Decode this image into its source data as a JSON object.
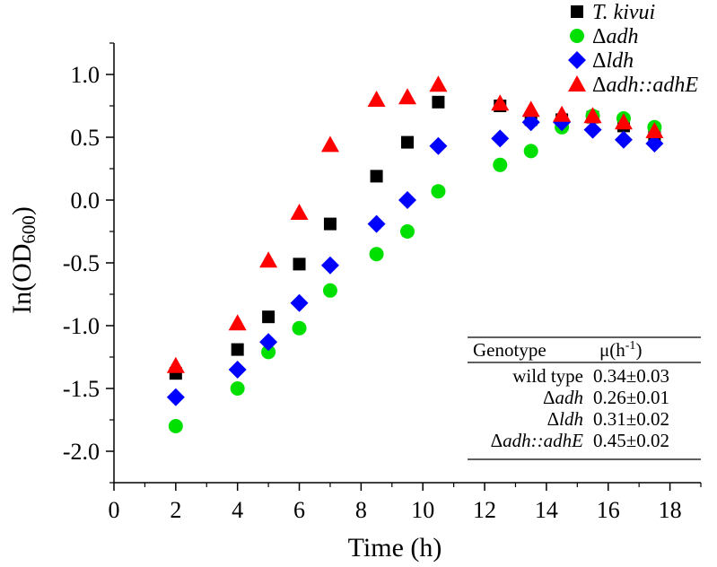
{
  "chart_data": {
    "type": "scatter",
    "xlabel": "Time (h)",
    "ylabel": {
      "main": "In(OD",
      "sub": "600",
      "end": ")"
    },
    "xlim": [
      0,
      19
    ],
    "ylim": [
      -2.25,
      1.25
    ],
    "xticks": [
      0,
      2,
      4,
      6,
      8,
      10,
      12,
      14,
      16,
      18
    ],
    "yticks": [
      1.0,
      0.5,
      0.0,
      -0.5,
      -1.0,
      -1.5,
      -2.0
    ],
    "xtick_labels": [
      "0",
      "2",
      "4",
      "6",
      "8",
      "10",
      "12",
      "14",
      "16",
      "18"
    ],
    "ytick_labels": [
      "1.0",
      "0.5",
      "0.0",
      "-0.5",
      "-1.0",
      "-1.5",
      "-2.0"
    ],
    "legend_position": "top-right",
    "series": [
      {
        "name": "T. kivui",
        "legend_label": {
          "prefix": "",
          "italic": "T. kivui"
        },
        "marker": "square",
        "color": "#000000",
        "x": [
          2,
          4,
          5,
          6,
          7,
          8.5,
          9.5,
          10.5,
          12.5,
          13.5,
          14.5,
          15.5,
          16.5,
          17.5
        ],
        "y": [
          -1.38,
          -1.19,
          -0.93,
          -0.51,
          -0.19,
          0.19,
          0.46,
          0.78,
          0.75,
          0.64,
          0.64,
          0.66,
          0.59,
          0.51
        ]
      },
      {
        "name": "Δadh",
        "legend_label": {
          "prefix": "Δ",
          "italic": "adh"
        },
        "marker": "circle",
        "color": "#00e000",
        "x": [
          2,
          4,
          5,
          6,
          7,
          8.5,
          9.5,
          10.5,
          12.5,
          13.5,
          14.5,
          15.5,
          16.5,
          17.5
        ],
        "y": [
          -1.8,
          -1.5,
          -1.21,
          -1.02,
          -0.72,
          -0.43,
          -0.25,
          0.07,
          0.28,
          0.39,
          0.58,
          0.67,
          0.65,
          0.58
        ]
      },
      {
        "name": "Δldh",
        "legend_label": {
          "prefix": "Δ",
          "italic": "ldh"
        },
        "marker": "diamond",
        "color": "#0000ff",
        "x": [
          2,
          4,
          5,
          6,
          7,
          8.5,
          9.5,
          10.5,
          12.5,
          13.5,
          14.5,
          15.5,
          16.5,
          17.5
        ],
        "y": [
          -1.57,
          -1.35,
          -1.13,
          -0.82,
          -0.52,
          -0.19,
          0.0,
          0.43,
          0.49,
          0.62,
          0.62,
          0.56,
          0.48,
          0.45
        ]
      },
      {
        "name": "Δadh::adhE",
        "legend_label": {
          "prefix": "Δ",
          "italic": "adh::adhE"
        },
        "marker": "triangle",
        "color": "#ff0000",
        "x": [
          2,
          4,
          5,
          6,
          7,
          8.5,
          9.5,
          10.5,
          12.5,
          13.5,
          14.5,
          15.5,
          16.5,
          17.5
        ],
        "y": [
          -1.32,
          -0.98,
          -0.48,
          -0.1,
          0.44,
          0.8,
          0.82,
          0.92,
          0.77,
          0.72,
          0.68,
          0.67,
          0.62,
          0.55
        ]
      }
    ],
    "table": {
      "headers": [
        "Genotype",
        "μ(h",
        "-1",
        ")"
      ],
      "rows": [
        {
          "prefix": "",
          "genotype": "wild type",
          "italic": false,
          "value": "0.34±0.03"
        },
        {
          "prefix": "Δ",
          "genotype": "adh",
          "italic": true,
          "value": "0.26±0.01"
        },
        {
          "prefix": "Δ",
          "genotype": "ldh",
          "italic": true,
          "value": "0.31±0.02"
        },
        {
          "prefix": "Δ",
          "genotype": "adh::adhE",
          "italic": true,
          "value": "0.45±0.02"
        }
      ]
    }
  }
}
